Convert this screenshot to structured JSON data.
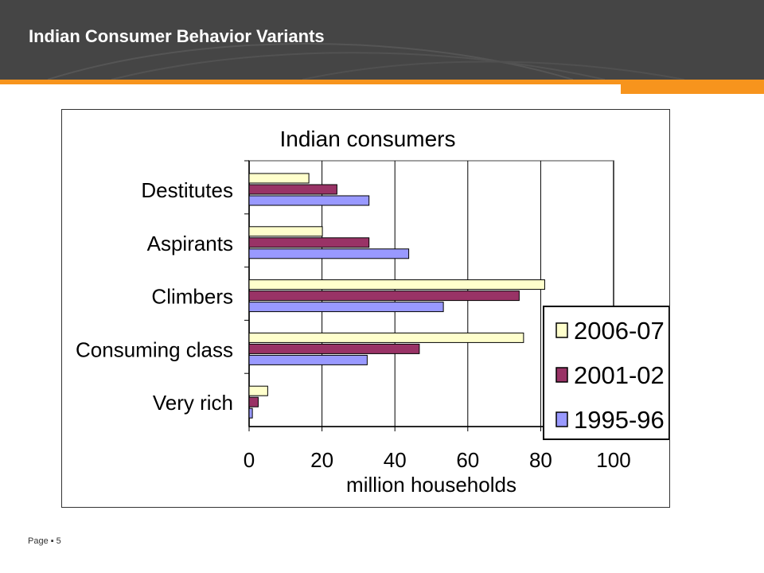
{
  "slide": {
    "title": "Indian Consumer Behavior Variants",
    "footer_label": "Page",
    "footer_bullet": "▪",
    "page_number": "5"
  },
  "colors": {
    "header_bg": "#454545",
    "accent_orange": "#f7941d",
    "series_2006": "#ffffcc",
    "series_2001": "#993366",
    "series_1995": "#9999ff"
  },
  "chart_data": {
    "type": "bar",
    "orientation": "horizontal",
    "title": "Indian consumers",
    "xlabel": "million households",
    "ylabel": "",
    "categories": [
      "Destitutes",
      "Aspirants",
      "Climbers",
      "Consuming class",
      "Very rich"
    ],
    "series": [
      {
        "name": "2006-07",
        "values": [
          16.4,
          20.1,
          81.1,
          75.3,
          5.1
        ],
        "color": "#ffffcc"
      },
      {
        "name": "2001-02",
        "values": [
          24.1,
          32.9,
          74.1,
          46.7,
          2.5
        ],
        "color": "#993366"
      },
      {
        "name": "1995-96",
        "values": [
          32.9,
          43.8,
          53.3,
          32.4,
          0.9
        ],
        "color": "#9999ff"
      }
    ],
    "xlim": [
      0,
      100
    ],
    "xticks": [
      "0",
      "20",
      "40",
      "60",
      "80",
      "100"
    ],
    "grid": true,
    "legend_position": "right"
  }
}
